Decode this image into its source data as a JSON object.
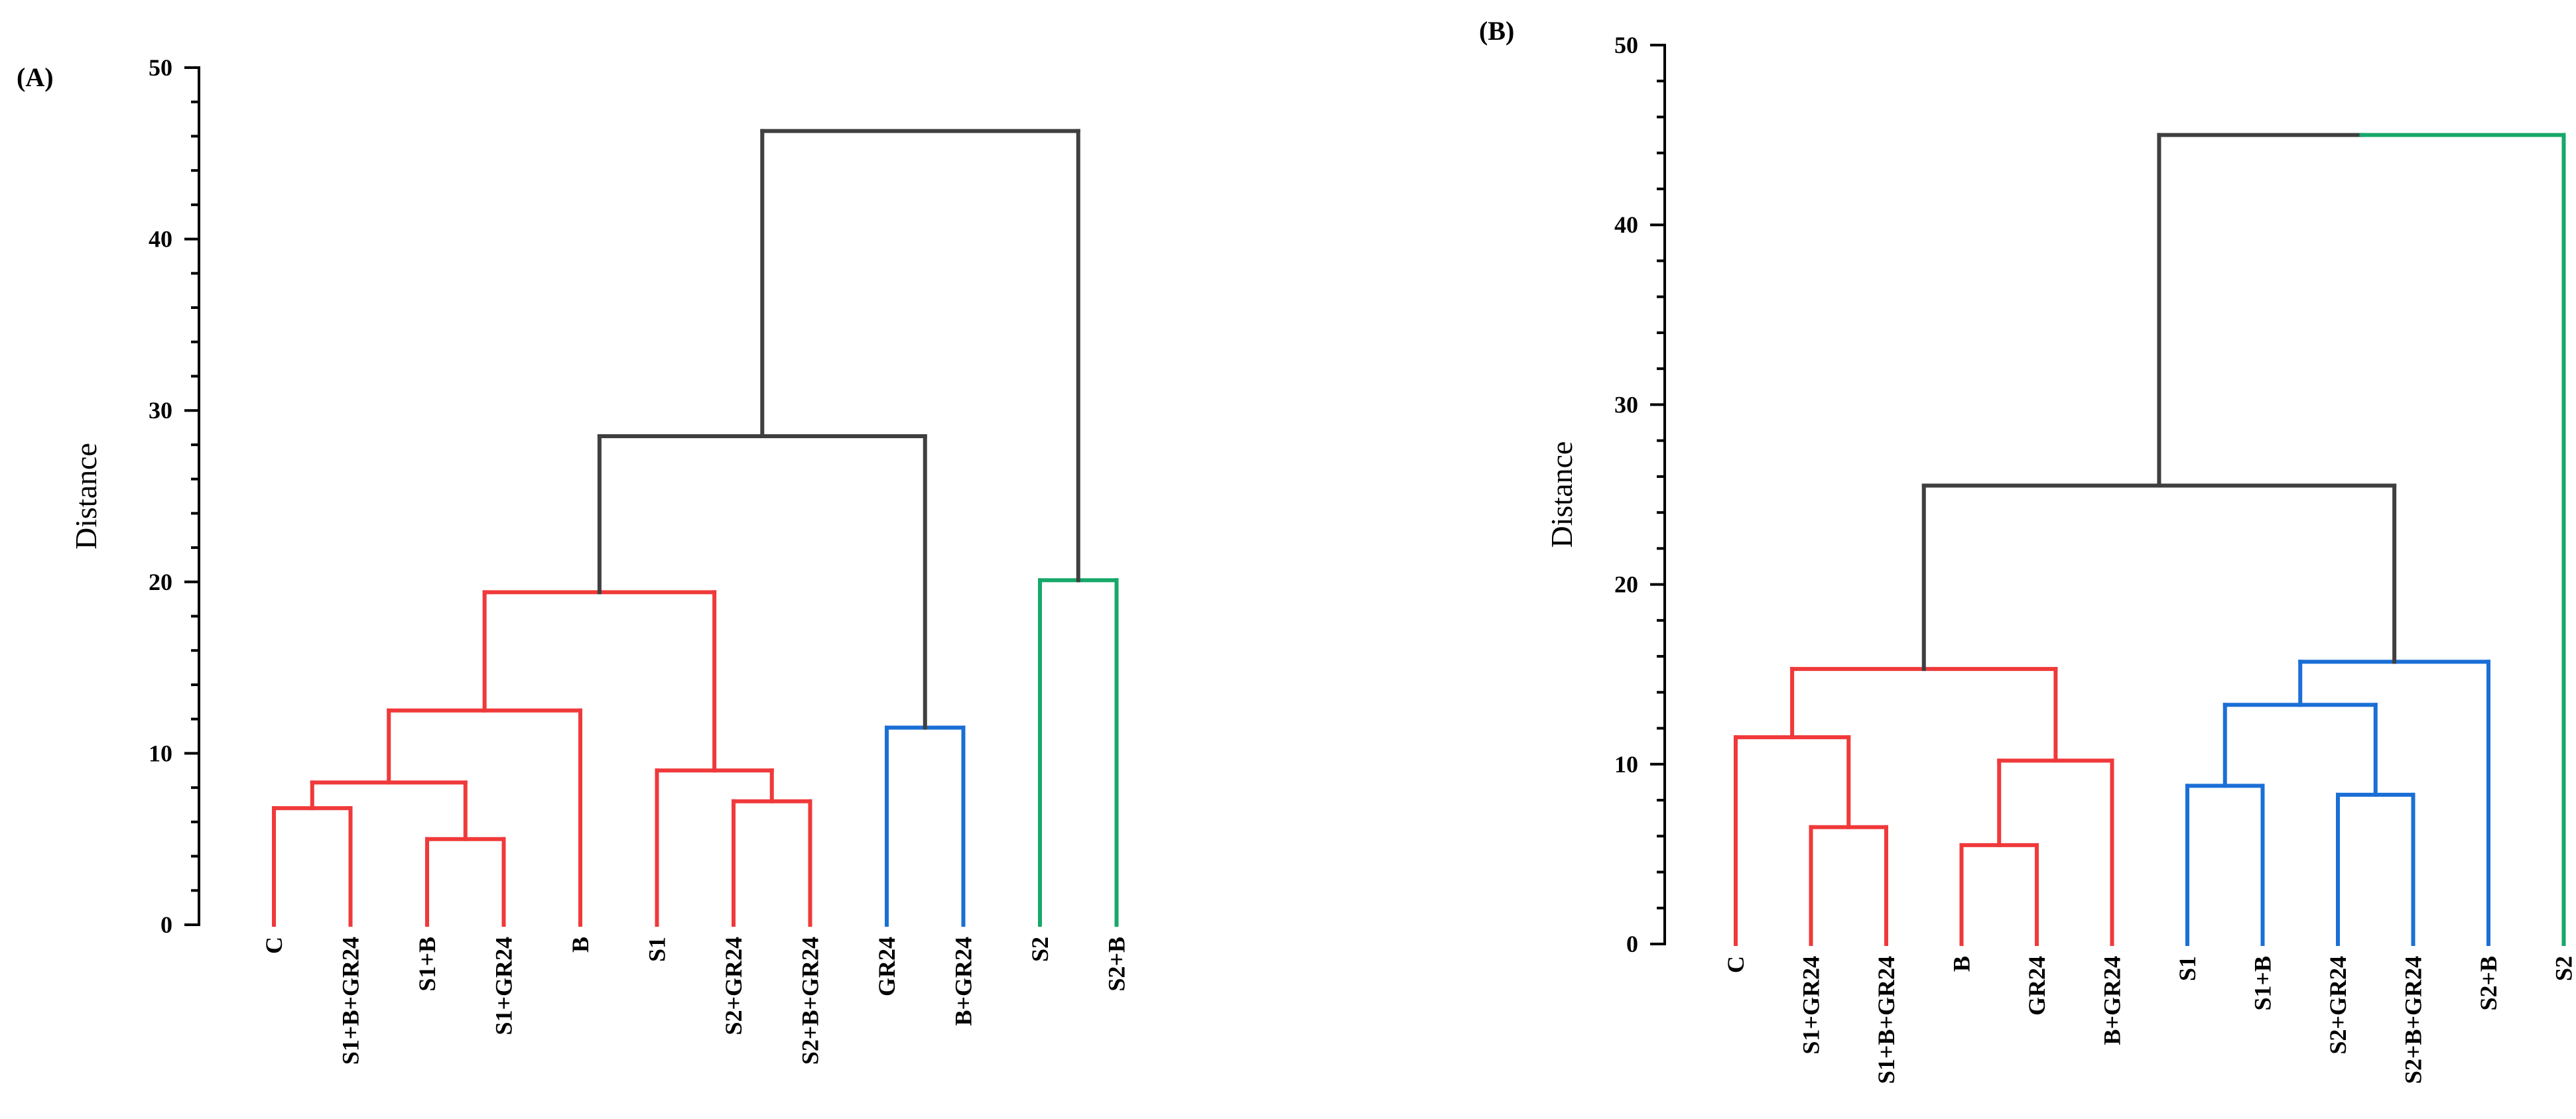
{
  "chart_data": [
    {
      "type": "dendrogram",
      "panel_label": "(A)",
      "ylabel": "Distance",
      "ylim": [
        0,
        50
      ],
      "yticks": [
        0,
        10,
        20,
        30,
        40,
        50
      ],
      "leaves": [
        "C",
        "S1+B+GR24",
        "S1+B",
        "S1+GR24",
        "B",
        "S1",
        "S2+GR24",
        "S2+B+GR24",
        "GR24",
        "B+GR24",
        "S2",
        "S2+B"
      ],
      "colors": {
        "red": "#F0393A",
        "blue": "#1A6FD6",
        "green": "#16A86A",
        "gray": "#3F3F3F"
      },
      "merges": [
        {
          "left": {
            "leaf": 2
          },
          "right": {
            "leaf": 3
          },
          "height": 5.0,
          "color": "red"
        },
        {
          "left": {
            "leaf": 0
          },
          "right": {
            "leaf": 1
          },
          "height": 6.8,
          "color": "red"
        },
        {
          "left": {
            "leaf": 6
          },
          "right": {
            "leaf": 7
          },
          "height": 7.2,
          "color": "red"
        },
        {
          "left": {
            "merge": 1
          },
          "right": {
            "merge": 0
          },
          "height": 8.3,
          "color": "red"
        },
        {
          "left": {
            "leaf": 5
          },
          "right": {
            "merge": 2
          },
          "height": 9.0,
          "color": "red"
        },
        {
          "left": {
            "leaf": 8
          },
          "right": {
            "leaf": 9
          },
          "height": 11.5,
          "color": "blue"
        },
        {
          "left": {
            "merge": 3
          },
          "right": {
            "leaf": 4
          },
          "height": 12.5,
          "color": "red"
        },
        {
          "left": {
            "merge": 6
          },
          "right": {
            "merge": 4
          },
          "height": 19.4,
          "color": "red"
        },
        {
          "left": {
            "leaf": 10
          },
          "right": {
            "leaf": 11
          },
          "height": 20.1,
          "color": "green"
        },
        {
          "left": {
            "merge": 7
          },
          "right": {
            "merge": 5
          },
          "height": 28.5,
          "color": "gray"
        },
        {
          "left": {
            "merge": 9
          },
          "right": {
            "merge": 8
          },
          "height": 46.3,
          "color": "gray"
        }
      ]
    },
    {
      "type": "dendrogram",
      "panel_label": "(B)",
      "ylabel": "Distance",
      "ylim": [
        0,
        50
      ],
      "yticks": [
        0,
        10,
        20,
        30,
        40,
        50
      ],
      "leaves": [
        "C",
        "S1+GR24",
        "S1+B+GR24",
        "B",
        "GR24",
        "B+GR24",
        "S1",
        "S1+B",
        "S2+GR24",
        "S2+B+GR24",
        "S2+B",
        "S2"
      ],
      "colors": {
        "red": "#F0393A",
        "blue": "#1A6FD6",
        "green": "#16A86A",
        "gray": "#3F3F3F"
      },
      "merges": [
        {
          "left": {
            "leaf": 3
          },
          "right": {
            "leaf": 4
          },
          "height": 5.5,
          "color": "red"
        },
        {
          "left": {
            "leaf": 1
          },
          "right": {
            "leaf": 2
          },
          "height": 6.5,
          "color": "red"
        },
        {
          "left": {
            "leaf": 8
          },
          "right": {
            "leaf": 9
          },
          "height": 8.3,
          "color": "blue"
        },
        {
          "left": {
            "leaf": 6
          },
          "right": {
            "leaf": 7
          },
          "height": 8.8,
          "color": "blue"
        },
        {
          "left": {
            "merge": 0
          },
          "right": {
            "leaf": 5
          },
          "height": 10.2,
          "color": "red"
        },
        {
          "left": {
            "leaf": 0
          },
          "right": {
            "merge": 1
          },
          "height": 11.5,
          "color": "red"
        },
        {
          "left": {
            "merge": 3
          },
          "right": {
            "merge": 2
          },
          "height": 13.3,
          "color": "blue"
        },
        {
          "left": {
            "merge": 5
          },
          "right": {
            "merge": 4
          },
          "height": 15.3,
          "color": "red"
        },
        {
          "left": {
            "merge": 6
          },
          "right": {
            "leaf": 10
          },
          "height": 15.7,
          "color": "blue"
        },
        {
          "left": {
            "merge": 7
          },
          "right": {
            "merge": 8
          },
          "height": 25.5,
          "color": "gray"
        },
        {
          "left": {
            "merge": 9
          },
          "right": {
            "leaf": 11
          },
          "height": 45.0,
          "color": "gray",
          "right_color": "green"
        }
      ]
    }
  ]
}
